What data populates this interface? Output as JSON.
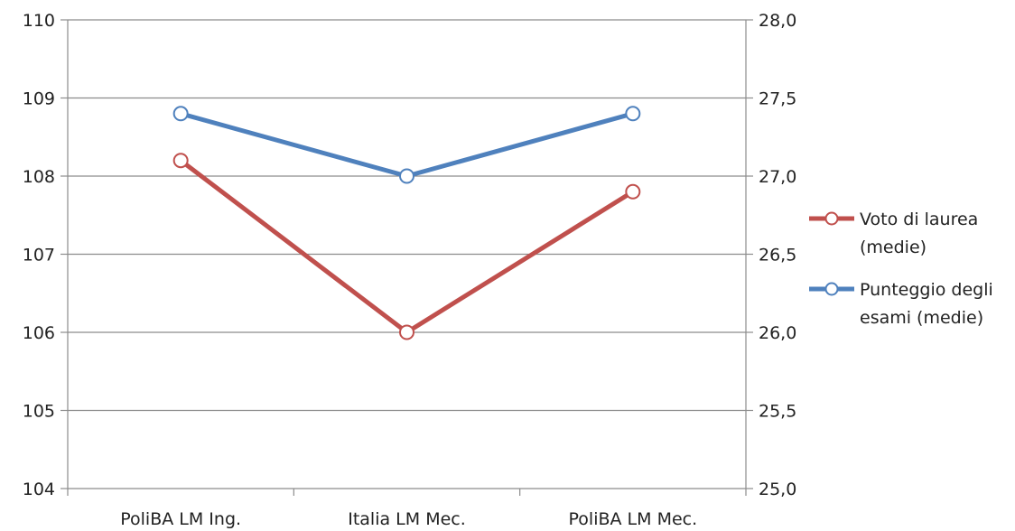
{
  "chart_data": {
    "type": "line",
    "categories": [
      "PoliBA LM Ing.",
      "Italia LM Mec.",
      "PoliBA LM Mec."
    ],
    "y_left": {
      "range": [
        104,
        110
      ],
      "ticks": [
        104,
        105,
        106,
        107,
        108,
        109,
        110
      ],
      "tick_labels": [
        "104",
        "105",
        "106",
        "107",
        "108",
        "109",
        "110"
      ]
    },
    "y_right": {
      "range": [
        25.0,
        28.0
      ],
      "ticks": [
        25.0,
        25.5,
        26.0,
        26.5,
        27.0,
        27.5,
        28.0
      ],
      "tick_labels": [
        "25,0",
        "25,5",
        "26,0",
        "26,5",
        "27,0",
        "27,5",
        "28,0"
      ]
    },
    "grid": true,
    "legend_position": "right",
    "series": [
      {
        "name_lines": [
          "Voto di laurea",
          "(medie)"
        ],
        "axis": "left",
        "color": "#c0504d",
        "values": [
          108.2,
          106.0,
          107.8
        ]
      },
      {
        "name_lines": [
          "Punteggio degli",
          "esami (medie)"
        ],
        "axis": "right",
        "color": "#4f81bd",
        "values": [
          27.4,
          27.0,
          27.4
        ]
      }
    ]
  }
}
